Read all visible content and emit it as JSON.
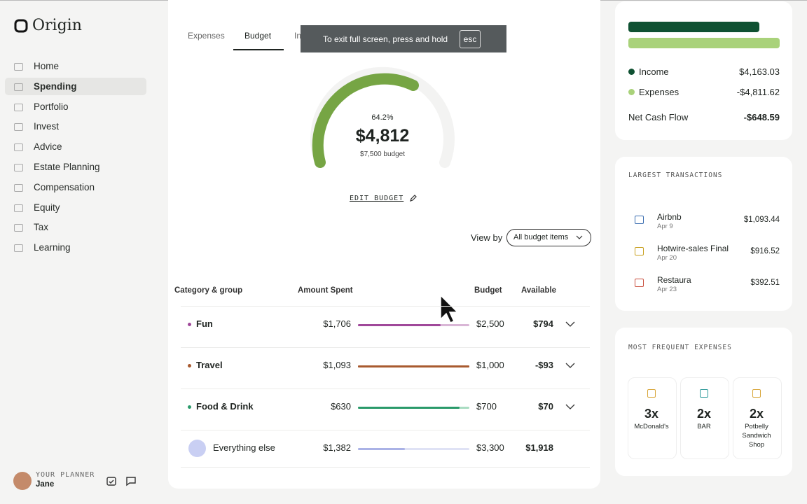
{
  "sidebar": {
    "brand": "Origin",
    "nav": [
      "Home",
      "Spending",
      "Portfolio",
      "Invest",
      "Advice",
      "Estate Planning",
      "Compensation",
      "Equity",
      "Tax",
      "Learning"
    ],
    "planner": {
      "label": "YOUR PLANNER",
      "name": "Jane"
    }
  },
  "tabs": [
    "Expenses",
    "Budget",
    "Income"
  ],
  "toast": {
    "text": "To exit full screen, press and hold",
    "key": "esc"
  },
  "gauge": {
    "percent": "64.2%",
    "amount": "$4,812",
    "budget": "$7,500 budget"
  },
  "edit_budget": "EDIT BUDGET",
  "view_by": {
    "label": "View by",
    "value": "All budget items"
  },
  "table": {
    "headers": [
      "Category & group",
      "Amount Spent",
      "Budget",
      "Available"
    ],
    "rows": [
      [
        "Fun",
        "$1,706",
        "$2,500",
        "$794"
      ],
      [
        "Travel",
        "$1,093",
        "$1,000",
        "-$93"
      ],
      [
        "Food & Drink",
        "$630",
        "$700",
        "$70"
      ],
      [
        "Everything else",
        "$1,382",
        "$3,300",
        "$1,918"
      ]
    ]
  },
  "summary": {
    "rows": [
      {
        "label": "Income",
        "value": "$4,163.03"
      },
      {
        "label": "Expenses",
        "value": "-$4,811.62"
      }
    ],
    "net": {
      "label": "Net Cash Flow",
      "value": "-$648.59"
    }
  },
  "largest": {
    "title": "LARGEST TRANSACTIONS",
    "items": [
      {
        "name": "Airbnb",
        "date": "Apr 9",
        "amount": "$1,093.44"
      },
      {
        "name": "Hotwire-sales Final",
        "date": "Apr 20",
        "amount": "$916.52"
      },
      {
        "name": "Restaura",
        "date": "Apr 23",
        "amount": "$392.51"
      }
    ]
  },
  "frequent": {
    "title": "MOST FREQUENT EXPENSES",
    "items": [
      {
        "count": "3x",
        "name": "McDonald's"
      },
      {
        "count": "2x",
        "name": "BAR"
      },
      {
        "count": "2x",
        "name": "Potbelly Sandwich Shop"
      }
    ]
  }
}
